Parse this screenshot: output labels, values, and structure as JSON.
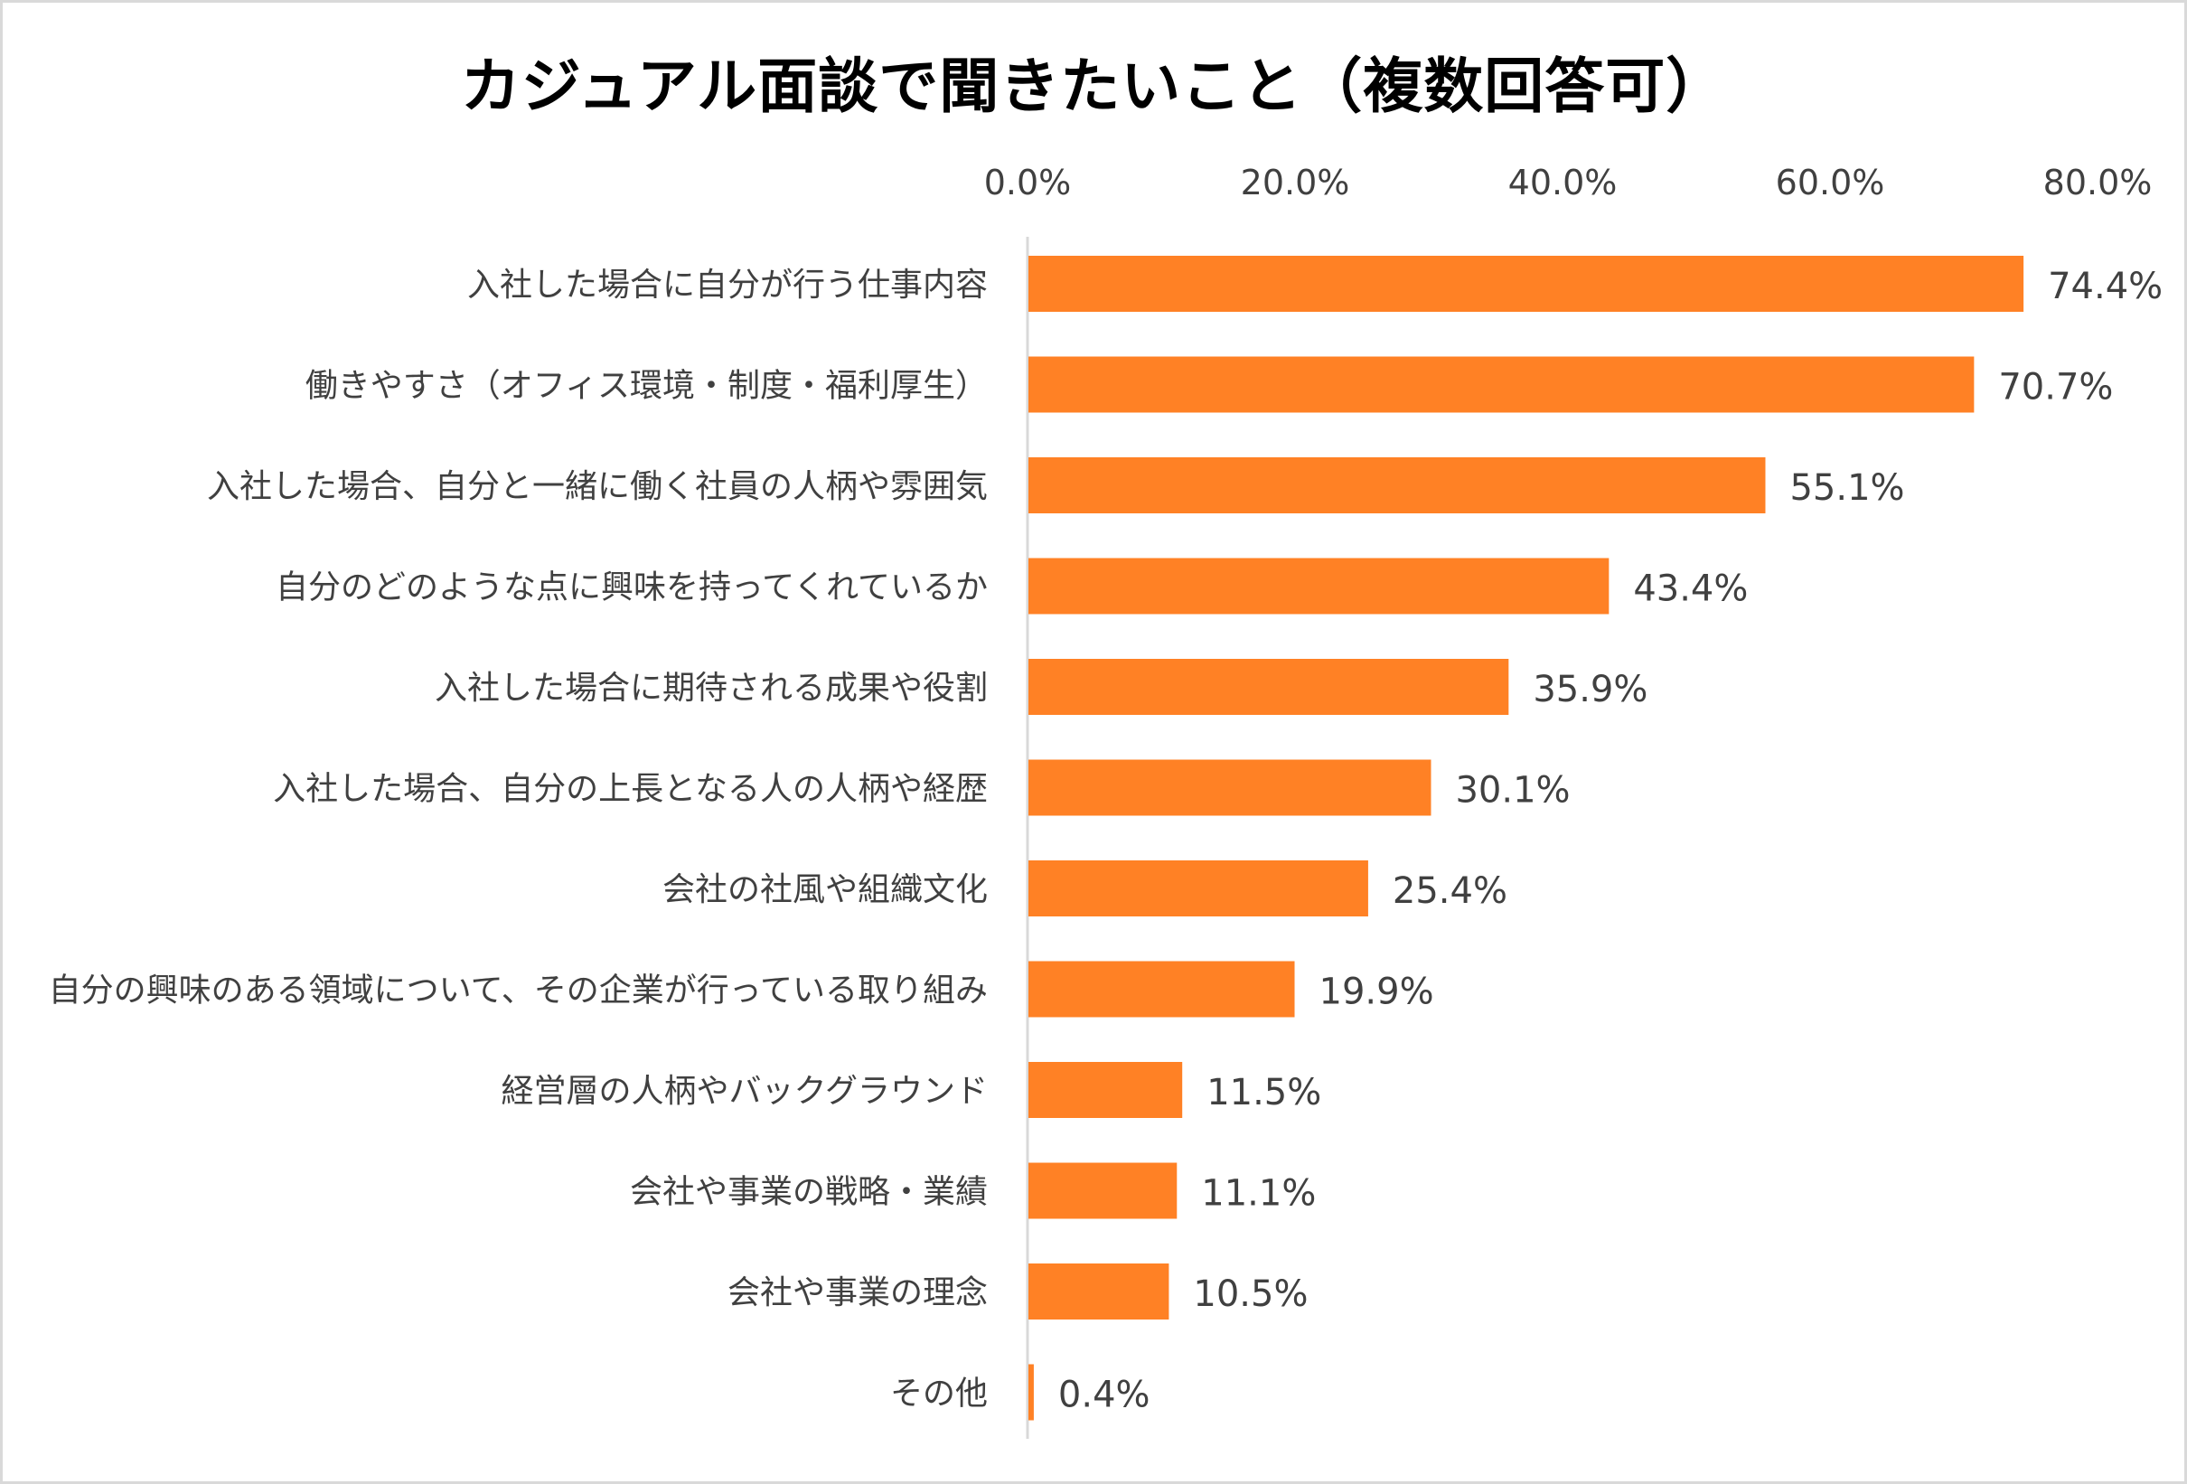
{
  "chart_data": {
    "type": "bar",
    "orientation": "horizontal",
    "title": "カジュアル面談で聞きたいこと（複数回答可）",
    "categories": [
      "入社した場合に自分が行う仕事内容",
      "働きやすさ（オフィス環境・制度・福利厚生）",
      "入社した場合、自分と一緒に働く社員の人柄や雰囲気",
      "自分のどのような点に興味を持ってくれているか",
      "入社した場合に期待される成果や役割",
      "入社した場合、自分の上長となる人の人柄や経歴",
      "会社の社風や組織文化",
      "自分の興味のある領域について、その企業が行っている取り組み",
      "経営層の人柄やバックグラウンド",
      "会社や事業の戦略・業績",
      "会社や事業の理念",
      "その他"
    ],
    "values": [
      74.4,
      70.7,
      55.1,
      43.4,
      35.9,
      30.1,
      25.4,
      19.9,
      11.5,
      11.1,
      10.5,
      0.4
    ],
    "data_labels": [
      "74.4%",
      "70.7%",
      "55.1%",
      "43.4%",
      "35.9%",
      "30.1%",
      "25.4%",
      "19.9%",
      "11.5%",
      "11.1%",
      "10.5%",
      "0.4%"
    ],
    "xlim": [
      0,
      80
    ],
    "x_ticks": [
      "0.0%",
      "20.0%",
      "40.0%",
      "60.0%",
      "80.0%"
    ],
    "x_axis_position": "top",
    "grid": false,
    "legend": "none",
    "bar_color": "#FF8125",
    "axis_line_color": "#d9d9d9",
    "text_color": "#404040"
  }
}
